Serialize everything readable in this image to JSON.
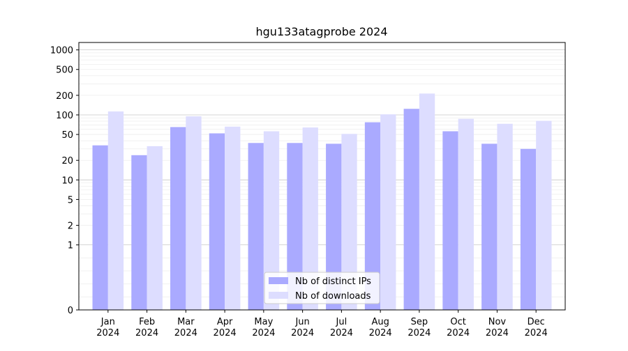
{
  "chart_data": {
    "type": "bar",
    "title": "hgu133atagprobe 2024",
    "xlabel": "",
    "ylabel": "",
    "y_scale": "symlog",
    "ylim": [
      0,
      1300
    ],
    "y_ticks": [
      0,
      1,
      2,
      5,
      10,
      20,
      50,
      100,
      200,
      500,
      1000
    ],
    "y_tick_labels": [
      "0",
      "1",
      "2",
      "5",
      "10",
      "20",
      "50",
      "100",
      "200",
      "500",
      "1000"
    ],
    "grid": "horizontal",
    "legend_position": "bottom-center",
    "categories": [
      "Jan\n2024",
      "Feb\n2024",
      "Mar\n2024",
      "Apr\n2024",
      "May\n2024",
      "Jun\n2024",
      "Jul\n2024",
      "Aug\n2024",
      "Sep\n2024",
      "Oct\n2024",
      "Nov\n2024",
      "Dec\n2024"
    ],
    "series": [
      {
        "name": "Nb of distinct IPs",
        "color": "#aaaaff",
        "values": [
          34,
          24,
          65,
          52,
          37,
          37,
          36,
          77,
          124,
          56,
          36,
          30
        ]
      },
      {
        "name": "Nb of downloads",
        "color": "#ddddff",
        "values": [
          113,
          33,
          95,
          66,
          56,
          64,
          51,
          102,
          213,
          87,
          73,
          81
        ]
      }
    ]
  }
}
